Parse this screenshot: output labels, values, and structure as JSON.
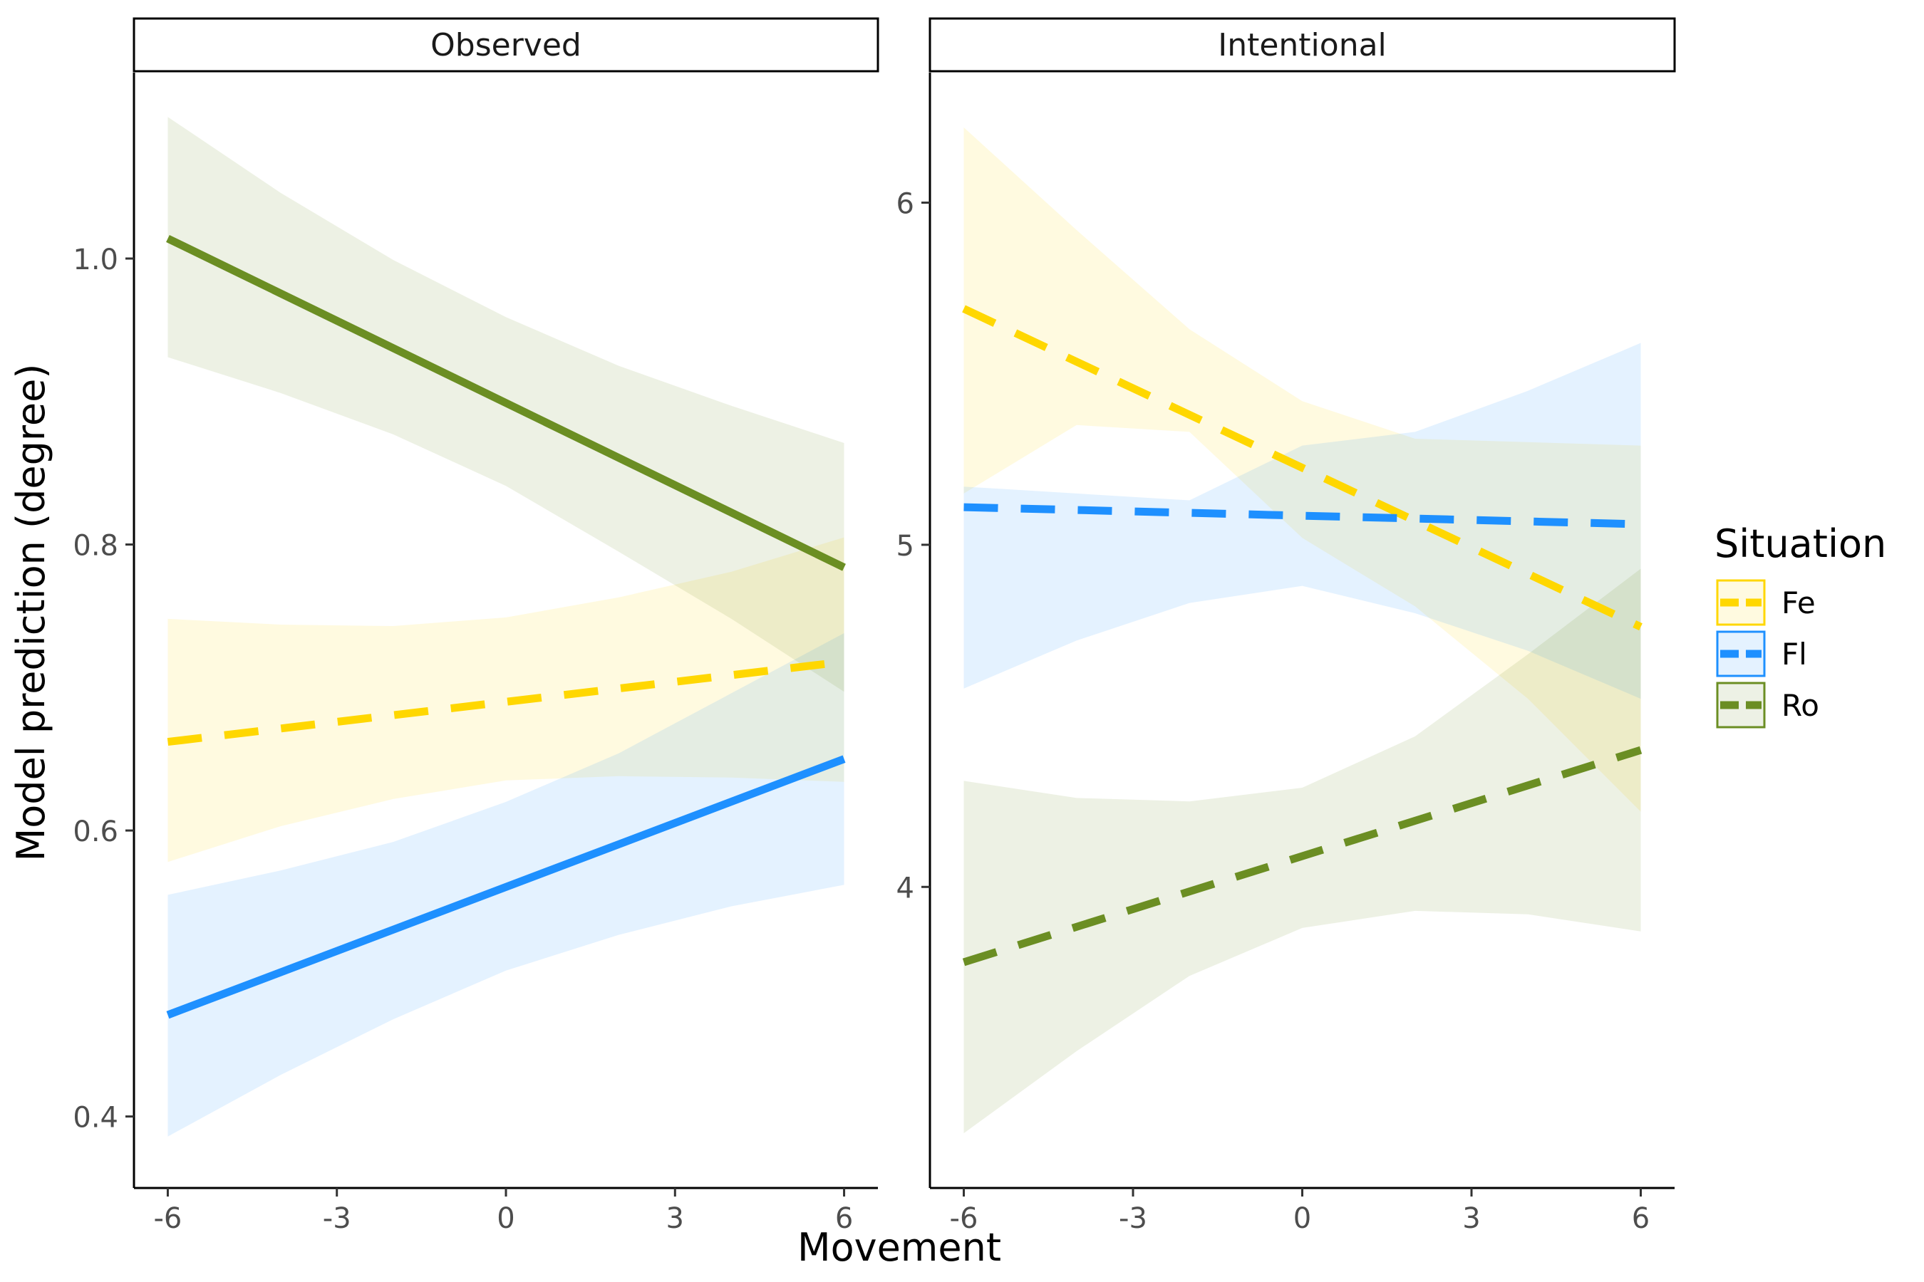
{
  "chart_data": {
    "type": "line",
    "xlabel": "Movement",
    "ylabel": "Model prediction (degree)",
    "x_ticks": [
      -6,
      -3,
      0,
      3,
      6
    ],
    "x_tick_labels": [
      "-6",
      "-3",
      "0",
      "3",
      "6"
    ],
    "xlim": [
      -6.6,
      6.6
    ],
    "grid": false,
    "legend": {
      "title": "Situation",
      "placement": "right",
      "entries": [
        {
          "label": "Fe",
          "color": "#FFD700"
        },
        {
          "label": "Fl",
          "color": "#1E90FF"
        },
        {
          "label": "Ro",
          "color": "#6B8E23"
        }
      ]
    },
    "panels": [
      {
        "title": "Observed",
        "ylim": [
          0.35,
          1.13
        ],
        "y_ticks": [
          0.4,
          0.6,
          0.8,
          1.0
        ],
        "y_tick_labels": [
          "0.4",
          "0.6",
          "0.8",
          "1.0"
        ],
        "series": [
          {
            "name": "Fe",
            "color": "#FFD700",
            "dash": true,
            "x": [
              -6,
              6
            ],
            "y": [
              0.662,
              0.718
            ],
            "band_x": [
              -6,
              -4,
              -2,
              0,
              2,
              4,
              6
            ],
            "band_lower": [
              0.578,
              0.603,
              0.622,
              0.635,
              0.638,
              0.637,
              0.634
            ],
            "band_upper": [
              0.748,
              0.744,
              0.743,
              0.749,
              0.763,
              0.781,
              0.805
            ]
          },
          {
            "name": "Fl",
            "color": "#1E90FF",
            "dash": false,
            "x": [
              -6,
              6
            ],
            "y": [
              0.471,
              0.65
            ],
            "band_x": [
              -6,
              -4,
              -2,
              0,
              2,
              4,
              6
            ],
            "band_lower": [
              0.386,
              0.429,
              0.468,
              0.502,
              0.527,
              0.547,
              0.562
            ],
            "band_upper": [
              0.555,
              0.572,
              0.592,
              0.62,
              0.654,
              0.696,
              0.738
            ]
          },
          {
            "name": "Ro",
            "color": "#6B8E23",
            "dash": false,
            "x": [
              -6,
              6
            ],
            "y": [
              1.014,
              0.784
            ],
            "band_x": [
              -6,
              -4,
              -2,
              0,
              2,
              4,
              6
            ],
            "band_lower": [
              0.931,
              0.906,
              0.877,
              0.841,
              0.795,
              0.748,
              0.697
            ],
            "band_upper": [
              1.099,
              1.046,
              0.999,
              0.959,
              0.925,
              0.897,
              0.871
            ]
          }
        ]
      },
      {
        "title": "Intentional",
        "ylim": [
          3.12,
          6.38
        ],
        "y_ticks": [
          4,
          5,
          6
        ],
        "y_tick_labels": [
          "4",
          "5",
          "6"
        ],
        "series": [
          {
            "name": "Fe",
            "color": "#FFD700",
            "dash": true,
            "x": [
              -6,
              6
            ],
            "y": [
              5.69,
              4.76
            ],
            "band_x": [
              -6,
              -4,
              -2,
              0,
              2,
              4,
              6
            ],
            "band_lower": [
              5.15,
              5.35,
              5.33,
              5.02,
              4.82,
              4.55,
              4.22
            ],
            "band_upper": [
              6.22,
              5.92,
              5.63,
              5.42,
              5.31,
              5.3,
              5.29
            ]
          },
          {
            "name": "Fl",
            "color": "#1E90FF",
            "dash": true,
            "x": [
              -6,
              6
            ],
            "y": [
              5.11,
              5.06
            ],
            "band_x": [
              -6,
              -4,
              -2,
              0,
              2,
              4,
              6
            ],
            "band_lower": [
              4.58,
              4.72,
              4.83,
              4.88,
              4.8,
              4.69,
              4.55
            ],
            "band_upper": [
              5.17,
              5.15,
              5.13,
              5.29,
              5.33,
              5.45,
              5.59
            ]
          },
          {
            "name": "Ro",
            "color": "#6B8E23",
            "dash": true,
            "x": [
              -6,
              6
            ],
            "y": [
              3.78,
              4.4
            ],
            "band_x": [
              -6,
              -4,
              -2,
              0,
              2,
              4,
              6
            ],
            "band_lower": [
              3.28,
              3.52,
              3.74,
              3.88,
              3.93,
              3.92,
              3.87
            ],
            "band_upper": [
              4.31,
              4.26,
              4.25,
              4.29,
              4.44,
              4.68,
              4.93
            ]
          }
        ]
      }
    ]
  }
}
